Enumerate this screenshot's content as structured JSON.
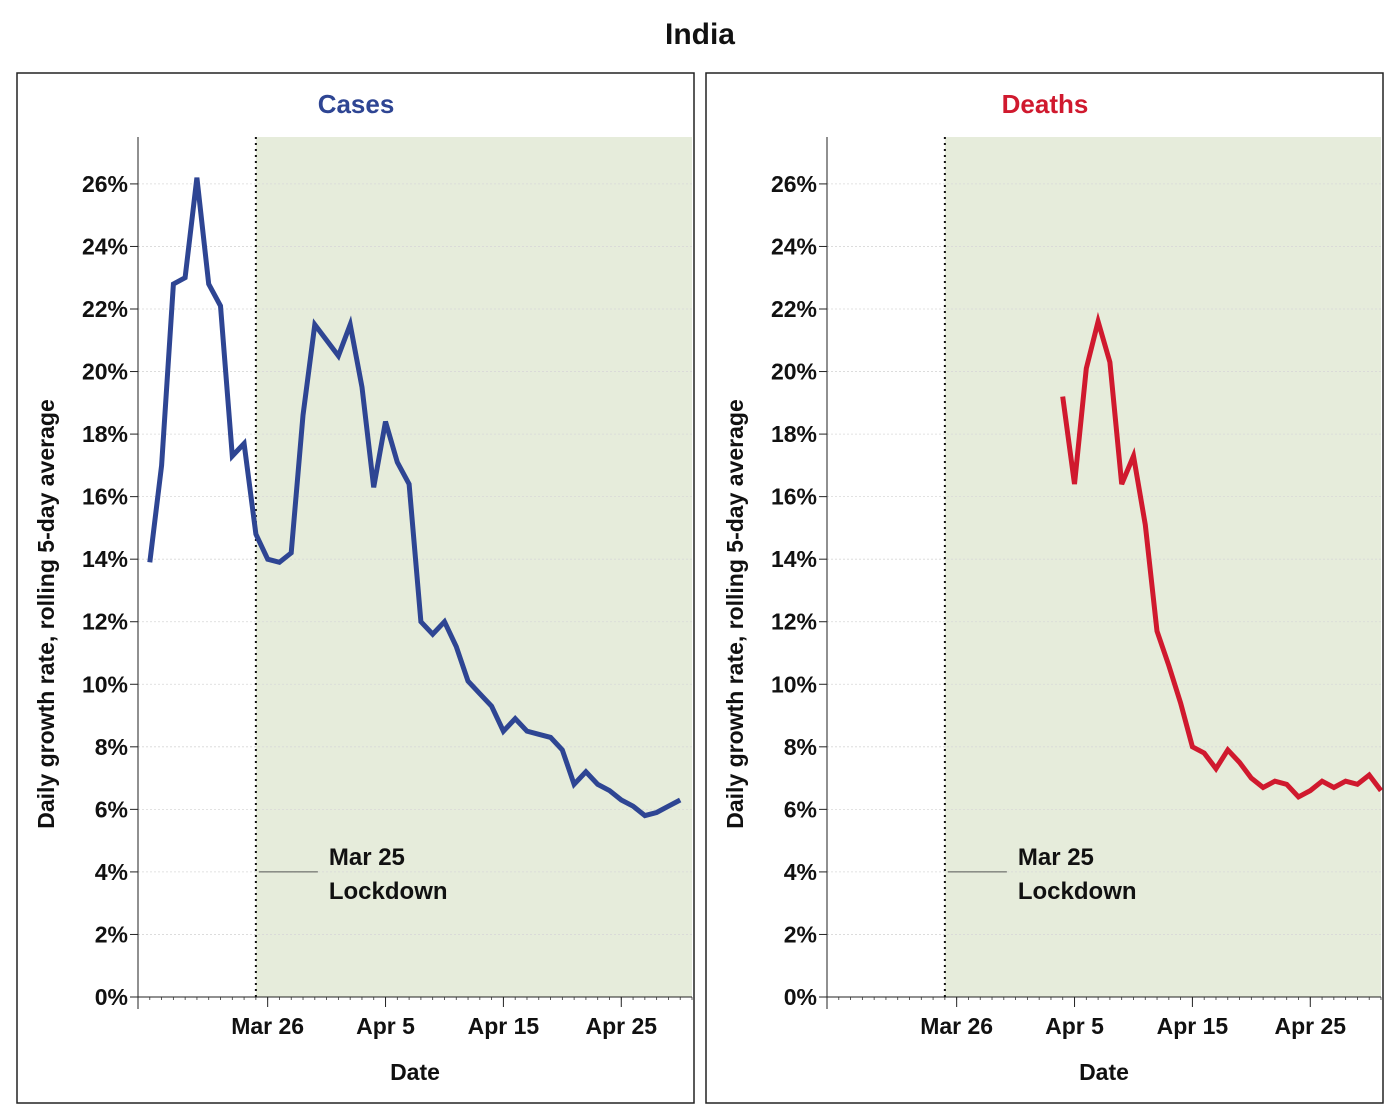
{
  "figure": {
    "title": "India"
  },
  "chart_data": [
    {
      "type": "line",
      "title": "Cases",
      "title_color": "#2e4593",
      "line_color": "#2e4593",
      "shade_color": "#e6ecdb",
      "xlabel": "Date",
      "ylabel": "Daily growth rate, rolling 5-day average",
      "ylim": [
        0,
        0.275
      ],
      "yticks": [
        0,
        0.02,
        0.04,
        0.06,
        0.08,
        0.1,
        0.12,
        0.14,
        0.16,
        0.18,
        0.2,
        0.22,
        0.24,
        0.26
      ],
      "ytick_labels": [
        "0%",
        "2%",
        "4%",
        "6%",
        "8%",
        "10%",
        "12%",
        "14%",
        "16%",
        "18%",
        "20%",
        "22%",
        "24%",
        "26%"
      ],
      "xlim": [
        "2020-03-15",
        "2020-05-01"
      ],
      "xticks": [
        "2020-03-26",
        "2020-04-05",
        "2020-04-15",
        "2020-04-25"
      ],
      "xtick_labels": [
        "Mar 26",
        "Apr 5",
        "Apr 15",
        "Apr 25"
      ],
      "grid": "horizontal",
      "shaded_region": [
        "2020-03-25",
        "2020-05-01"
      ],
      "event": {
        "date": "2020-03-25",
        "line1": "Mar 25",
        "line2": "Lockdown"
      },
      "series": [
        {
          "x": [
            "2020-03-16",
            "2020-03-17",
            "2020-03-18",
            "2020-03-19",
            "2020-03-20",
            "2020-03-21",
            "2020-03-22",
            "2020-03-23",
            "2020-03-24",
            "2020-03-25",
            "2020-03-26",
            "2020-03-27",
            "2020-03-28",
            "2020-03-29",
            "2020-03-30",
            "2020-03-31",
            "2020-04-01",
            "2020-04-02",
            "2020-04-03",
            "2020-04-04",
            "2020-04-05",
            "2020-04-06",
            "2020-04-07",
            "2020-04-08",
            "2020-04-09",
            "2020-04-10",
            "2020-04-11",
            "2020-04-12",
            "2020-04-13",
            "2020-04-14",
            "2020-04-15",
            "2020-04-16",
            "2020-04-17",
            "2020-04-18",
            "2020-04-19",
            "2020-04-20",
            "2020-04-21",
            "2020-04-22",
            "2020-04-23",
            "2020-04-24",
            "2020-04-25",
            "2020-04-26",
            "2020-04-27",
            "2020-04-28",
            "2020-04-29",
            "2020-04-30"
          ],
          "values": [
            0.139,
            0.17,
            0.228,
            0.23,
            0.262,
            0.228,
            0.221,
            0.173,
            0.177,
            0.148,
            0.14,
            0.139,
            0.142,
            0.186,
            0.215,
            0.21,
            0.205,
            0.215,
            0.195,
            0.163,
            0.184,
            0.171,
            0.164,
            0.12,
            0.116,
            0.12,
            0.112,
            0.101,
            0.097,
            0.093,
            0.085,
            0.089,
            0.085,
            0.084,
            0.083,
            0.079,
            0.068,
            0.072,
            0.068,
            0.066,
            0.063,
            0.061,
            0.058,
            0.059,
            0.061,
            0.063
          ]
        }
      ]
    },
    {
      "type": "line",
      "title": "Deaths",
      "title_color": "#d0192e",
      "line_color": "#d0192e",
      "shade_color": "#e6ecdb",
      "xlabel": "Date",
      "ylabel": "Daily growth rate, rolling 5-day average",
      "ylim": [
        0,
        0.275
      ],
      "yticks": [
        0,
        0.02,
        0.04,
        0.06,
        0.08,
        0.1,
        0.12,
        0.14,
        0.16,
        0.18,
        0.2,
        0.22,
        0.24,
        0.26
      ],
      "ytick_labels": [
        "0%",
        "2%",
        "4%",
        "6%",
        "8%",
        "10%",
        "12%",
        "14%",
        "16%",
        "18%",
        "20%",
        "22%",
        "24%",
        "26%"
      ],
      "xlim": [
        "2020-03-15",
        "2020-05-01"
      ],
      "xticks": [
        "2020-03-26",
        "2020-04-05",
        "2020-04-15",
        "2020-04-25"
      ],
      "xtick_labels": [
        "Mar 26",
        "Apr 5",
        "Apr 15",
        "Apr 25"
      ],
      "grid": "horizontal",
      "shaded_region": [
        "2020-03-25",
        "2020-05-01"
      ],
      "event": {
        "date": "2020-03-25",
        "line1": "Mar 25",
        "line2": "Lockdown"
      },
      "series": [
        {
          "x": [
            "2020-04-04",
            "2020-04-05",
            "2020-04-06",
            "2020-04-07",
            "2020-04-08",
            "2020-04-09",
            "2020-04-10",
            "2020-04-11",
            "2020-04-12",
            "2020-04-13",
            "2020-04-14",
            "2020-04-15",
            "2020-04-16",
            "2020-04-17",
            "2020-04-18",
            "2020-04-19",
            "2020-04-20",
            "2020-04-21",
            "2020-04-22",
            "2020-04-23",
            "2020-04-24",
            "2020-04-25",
            "2020-04-26",
            "2020-04-27",
            "2020-04-28",
            "2020-04-29",
            "2020-04-30",
            "2020-05-01"
          ],
          "values": [
            0.192,
            0.164,
            0.201,
            0.216,
            0.203,
            0.164,
            0.173,
            0.151,
            0.117,
            0.106,
            0.094,
            0.08,
            0.078,
            0.073,
            0.079,
            0.075,
            0.07,
            0.067,
            0.069,
            0.068,
            0.064,
            0.066,
            0.069,
            0.067,
            0.069,
            0.068,
            0.071,
            0.066
          ]
        }
      ]
    }
  ]
}
